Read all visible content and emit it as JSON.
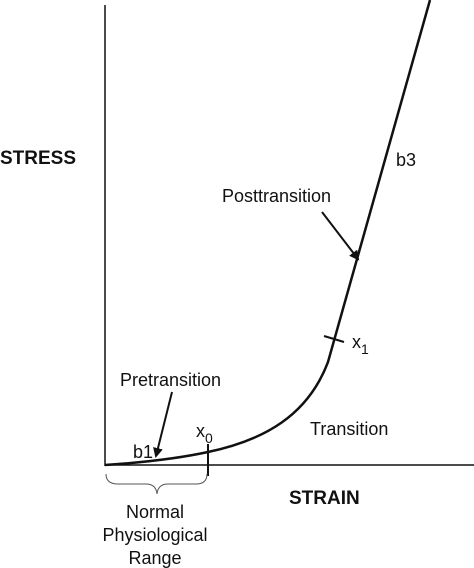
{
  "axes": {
    "y_label": "STRESS",
    "x_label": "STRAIN"
  },
  "labels": {
    "b3": "b3",
    "b1": "b1",
    "posttransition": "Posttransition",
    "pretransition": "Pretransition",
    "transition": "Transition",
    "x1": {
      "symbol": "x",
      "subscript": "1"
    },
    "x0": {
      "symbol": "x",
      "subscript": "0"
    }
  },
  "range": {
    "line1": "Normal",
    "line2": "Physiological",
    "line3": "Range"
  }
}
